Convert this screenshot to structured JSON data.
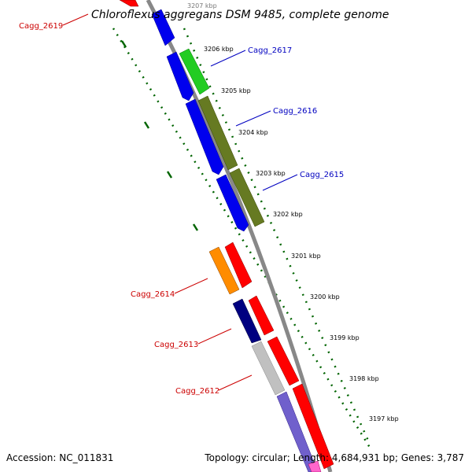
{
  "title": "Chloroflexus aggregans DSM 9485, complete genome",
  "footer": {
    "accession": "Accession: NC_011831",
    "summary": "Topology: circular; Length: 4,684,931 bp; Genes: 3,787"
  },
  "colors": {
    "backbone": "#888888",
    "tick": "#006400",
    "forward_label": "#0000c0",
    "reverse_label": "#cc0000"
  },
  "ticks": [
    {
      "label": "3207 kbp"
    },
    {
      "label": "3206 kbp"
    },
    {
      "label": "3205 kbp"
    },
    {
      "label": "3204 kbp"
    },
    {
      "label": "3203 kbp"
    },
    {
      "label": "3202 kbp"
    },
    {
      "label": "3201 kbp"
    },
    {
      "label": "3200 kbp"
    },
    {
      "label": "3199 kbp"
    },
    {
      "label": "3198 kbp"
    },
    {
      "label": "3197 kbp"
    }
  ],
  "gene_labels": [
    {
      "text": "Cagg_2619",
      "strand": "reverse"
    },
    {
      "text": "Cagg_2617",
      "strand": "forward"
    },
    {
      "text": "Cagg_2616",
      "strand": "forward"
    },
    {
      "text": "Cagg_2615",
      "strand": "forward"
    },
    {
      "text": "Cagg_2614",
      "strand": "reverse"
    },
    {
      "text": "Cagg_2613",
      "strand": "reverse"
    },
    {
      "text": "Cagg_2612",
      "strand": "reverse"
    }
  ]
}
